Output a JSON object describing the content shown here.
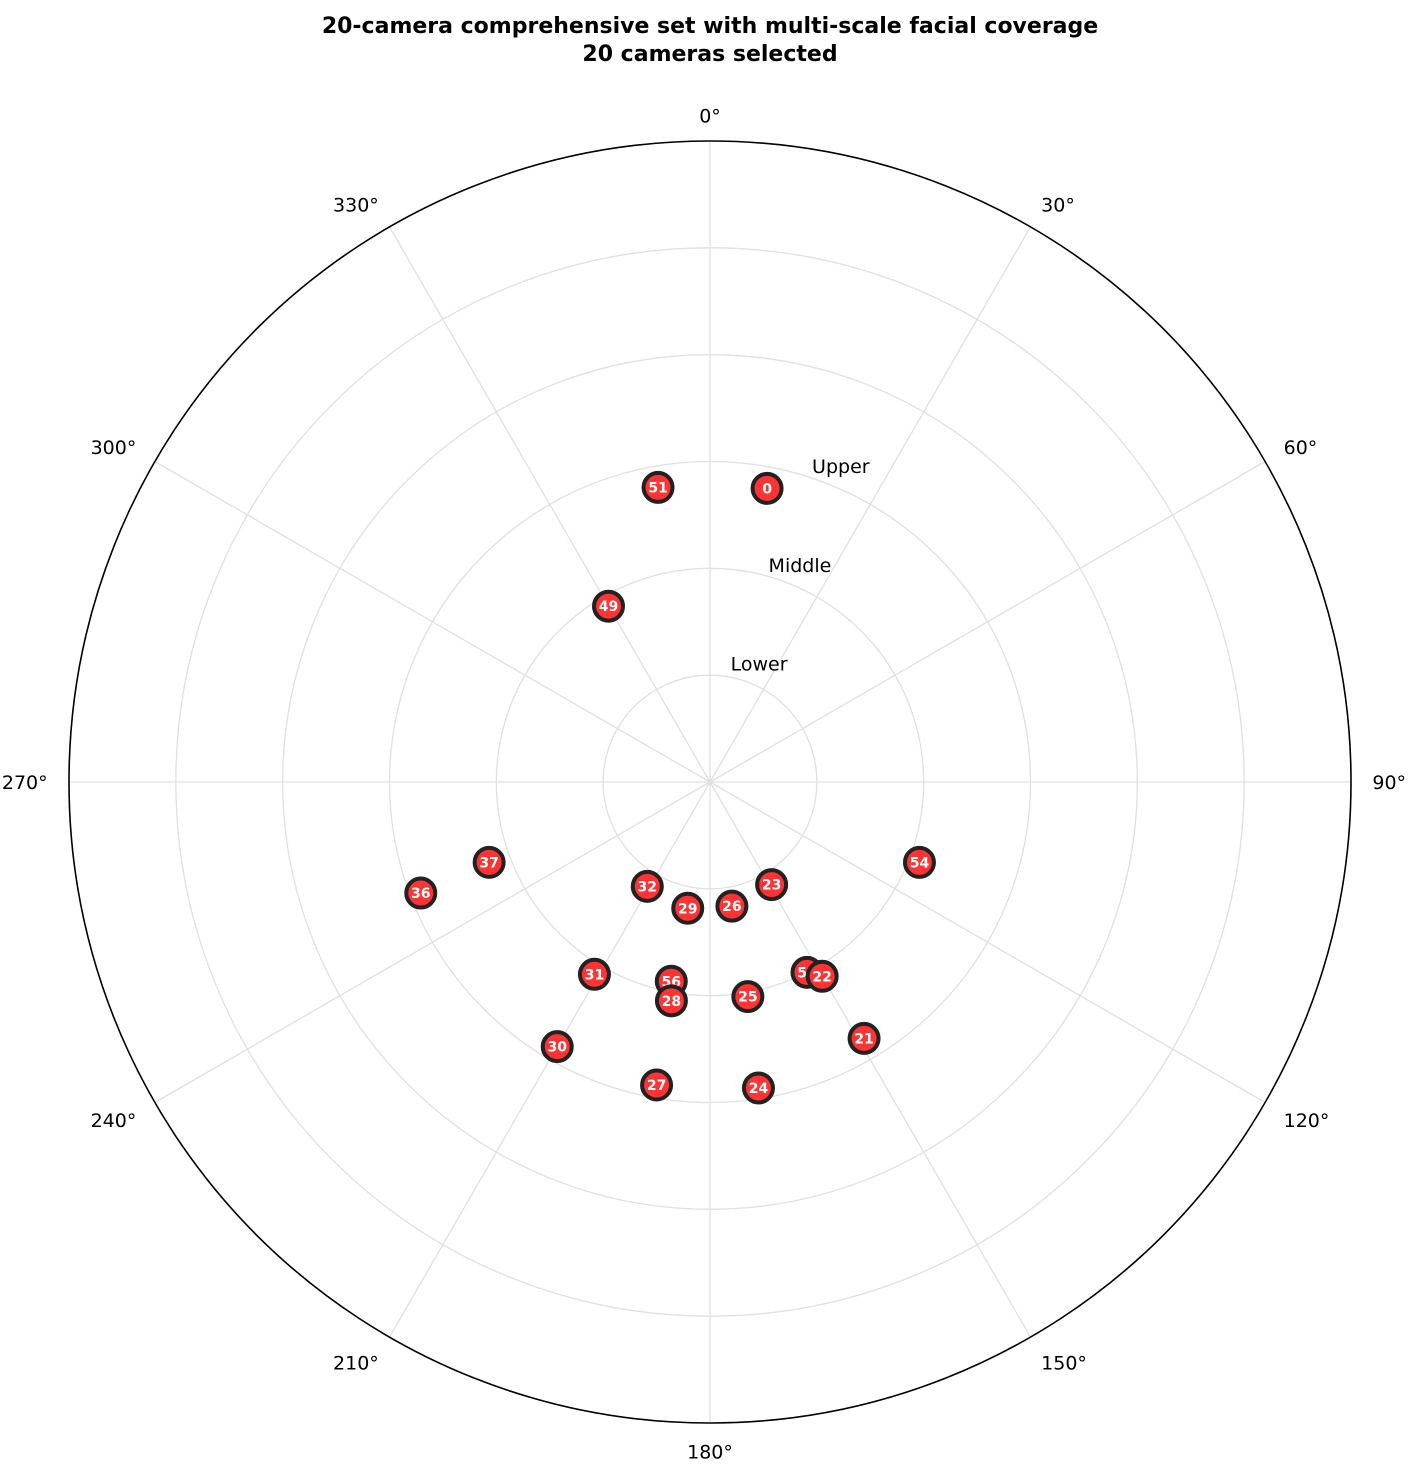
{
  "chart_data": {
    "type": "scatter",
    "projection": "polar",
    "title_lines": [
      "20-camera comprehensive set with multi-scale facial coverage",
      "20 cameras selected"
    ],
    "theta_direction": "clockwise",
    "theta_zero": "top",
    "theta_ticks": [
      "0°",
      "30°",
      "60°",
      "90°",
      "120°",
      "150°",
      "180°",
      "210°",
      "240°",
      "270°",
      "300°",
      "330°"
    ],
    "theta_tick_values": [
      0,
      30,
      60,
      90,
      120,
      150,
      180,
      210,
      240,
      270,
      300,
      330
    ],
    "rlim": [
      0,
      3
    ],
    "ring_radii": [
      0.5,
      1.0,
      1.5,
      2.0,
      2.5
    ],
    "ring_labels": [
      {
        "text": "Lower",
        "r": 0.6
      },
      {
        "text": "Middle",
        "r": 1.1
      },
      {
        "text": "Upper",
        "r": 1.6
      }
    ],
    "grid": true,
    "marker_color": "#ff3333",
    "marker_edge_color": "#222222",
    "points": [
      {
        "label": "0",
        "theta": 11,
        "r": 1.4
      },
      {
        "label": "51",
        "theta": 350,
        "r": 1.4
      },
      {
        "label": "49",
        "theta": 330,
        "r": 0.95
      },
      {
        "label": "54",
        "theta": 111,
        "r": 1.05
      },
      {
        "label": "23",
        "theta": 149,
        "r": 0.56
      },
      {
        "label": "26",
        "theta": 170,
        "r": 0.59
      },
      {
        "label": "29",
        "theta": 190,
        "r": 0.6
      },
      {
        "label": "32",
        "theta": 211,
        "r": 0.57
      },
      {
        "label": "37",
        "theta": 250,
        "r": 1.1
      },
      {
        "label": "36",
        "theta": 249,
        "r": 1.45
      },
      {
        "label": "55",
        "theta": 153,
        "r": 1.0
      },
      {
        "label": "22",
        "theta": 150,
        "r": 1.05
      },
      {
        "label": "31",
        "theta": 211,
        "r": 1.05
      },
      {
        "label": "56",
        "theta": 191,
        "r": 0.95
      },
      {
        "label": "28",
        "theta": 190,
        "r": 1.04
      },
      {
        "label": "25",
        "theta": 170,
        "r": 1.02
      },
      {
        "label": "21",
        "theta": 149,
        "r": 1.4
      },
      {
        "label": "30",
        "theta": 210,
        "r": 1.43
      },
      {
        "label": "27",
        "theta": 190,
        "r": 1.44
      },
      {
        "label": "24",
        "theta": 171,
        "r": 1.45
      }
    ]
  }
}
